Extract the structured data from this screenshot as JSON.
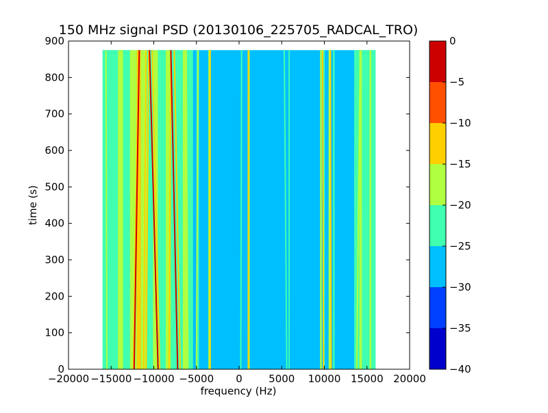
{
  "chart_data": {
    "type": "heatmap",
    "title": "150 MHz signal PSD (20130106_225705_RADCAL_TRO)",
    "xlabel": "frequency (Hz)",
    "ylabel": "time (s)",
    "xlim": [
      -20000,
      20000
    ],
    "ylim": [
      0,
      900
    ],
    "xticks": [
      -20000,
      -15000,
      -10000,
      -5000,
      0,
      5000,
      10000,
      15000,
      20000
    ],
    "yticks": [
      0,
      100,
      200,
      300,
      400,
      500,
      600,
      700,
      800,
      900
    ],
    "data_extent": {
      "freq": [
        -16000,
        16000
      ],
      "time": [
        0,
        875
      ]
    },
    "background_level": -27.5,
    "colorbar": {
      "label": "",
      "range": [
        -40,
        0
      ],
      "ticks": [
        0,
        -5,
        -10,
        -15,
        -20,
        -25,
        -30,
        -35,
        -40
      ],
      "levels": [
        {
          "min": -40,
          "max": -35,
          "color": "#0000cd"
        },
        {
          "min": -35,
          "max": -30,
          "color": "#0040ff"
        },
        {
          "min": -30,
          "max": -25,
          "color": "#00bfff"
        },
        {
          "min": -25,
          "max": -20,
          "color": "#40ffb0"
        },
        {
          "min": -20,
          "max": -15,
          "color": "#b0ff40"
        },
        {
          "min": -15,
          "max": -10,
          "color": "#ffd000"
        },
        {
          "min": -10,
          "max": -5,
          "color": "#ff5000"
        },
        {
          "min": -5,
          "max": 0,
          "color": "#cd0000"
        }
      ]
    },
    "bands": [
      {
        "f0": -16000,
        "f1": -13500,
        "level": -22.5
      },
      {
        "f0": -14200,
        "f1": -13600,
        "level": -17.5
      },
      {
        "f0": -13500,
        "f1": -12800,
        "level": -22.5
      },
      {
        "f0": -12800,
        "f1": -12000,
        "level": -17.5
      },
      {
        "f0": -12000,
        "f1": -11500,
        "level": -12.5
      },
      {
        "f0": -11500,
        "f1": -10800,
        "level": -17.5
      },
      {
        "f0": -10800,
        "f1": -10100,
        "level": -22.5
      },
      {
        "f0": -10100,
        "f1": -9500,
        "level": -17.5
      },
      {
        "f0": -9500,
        "f1": -8600,
        "level": -22.5
      },
      {
        "f0": -8600,
        "f1": -8000,
        "level": -17.5
      },
      {
        "f0": -8000,
        "f1": -6600,
        "level": -22.5
      },
      {
        "f0": -6600,
        "f1": -6100,
        "level": -17.5
      },
      {
        "f0": -6100,
        "f1": -5400,
        "level": -22.5
      },
      {
        "f0": -5000,
        "f1": -4700,
        "level": -22.5
      },
      {
        "f0": -3600,
        "f1": -3300,
        "level": -17.5
      },
      {
        "f0": 1000,
        "f1": 1250,
        "level": -17.5
      },
      {
        "f0": 5800,
        "f1": 5950,
        "level": -22.5
      },
      {
        "f0": 9500,
        "f1": 9700,
        "level": -17.5
      },
      {
        "f0": 9900,
        "f1": 10050,
        "level": -22.5
      },
      {
        "f0": 10500,
        "f1": 10800,
        "level": -17.5
      },
      {
        "f0": 11000,
        "f1": 11200,
        "level": -22.5
      },
      {
        "f0": 13500,
        "f1": 16000,
        "level": -22.5
      },
      {
        "f0": 14100,
        "f1": 14400,
        "level": -17.5
      },
      {
        "f0": 15300,
        "f1": 15500,
        "level": -17.5
      }
    ],
    "lines": [
      {
        "f_start": -15500,
        "f_end": -15600,
        "level": -17.5
      },
      {
        "f_start": -14900,
        "f_end": -15000,
        "level": -22.5
      },
      {
        "f_start": -12400,
        "f_end": -11800,
        "level": -12.5
      },
      {
        "f_start": -12300,
        "f_end": -11700,
        "level": -2.5
      },
      {
        "f_start": -11200,
        "f_end": -10900,
        "level": -12.5
      },
      {
        "f_start": -10900,
        "f_end": -10600,
        "level": -12.5
      },
      {
        "f_start": -9500,
        "f_end": -10500,
        "level": -2.5
      },
      {
        "f_start": -9300,
        "f_end": -10200,
        "level": -12.5
      },
      {
        "f_start": -8200,
        "f_end": -8000,
        "level": -12.5
      },
      {
        "f_start": -7200,
        "f_end": -8000,
        "level": -2.5
      },
      {
        "f_start": -6900,
        "f_end": -7600,
        "level": -12.5
      },
      {
        "f_start": -6000,
        "f_end": -6200,
        "level": -17.5
      },
      {
        "f_start": -5000,
        "f_end": -4800,
        "level": -17.5
      },
      {
        "f_start": -3400,
        "f_end": -3400,
        "level": -12.5
      },
      {
        "f_start": 200,
        "f_end": 300,
        "level": -22.5
      },
      {
        "f_start": 1100,
        "f_end": 1100,
        "level": -12.5
      },
      {
        "f_start": 5600,
        "f_end": 5300,
        "level": -22.5
      },
      {
        "f_start": 9900,
        "f_end": 9800,
        "level": -12.5
      },
      {
        "f_start": 10800,
        "f_end": 10700,
        "level": -12.5
      },
      {
        "f_start": 13800,
        "f_end": 14200,
        "level": -17.5
      }
    ]
  }
}
